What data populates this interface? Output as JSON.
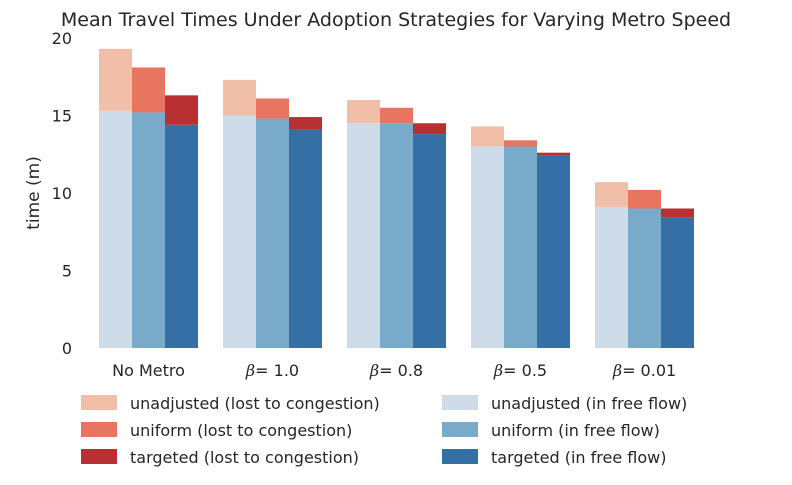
{
  "chart_data": {
    "type": "bar",
    "stacked": true,
    "title": "Mean Travel Times Under Adoption Strategies for Varying Metro Speed",
    "xlabel": "",
    "ylabel": "time (m)",
    "ylim": [
      0,
      20
    ],
    "yticks": [
      0,
      5,
      10,
      15,
      20
    ],
    "grid": false,
    "legend_position": "bottom",
    "categories": [
      {
        "prefix": "",
        "label": "No Metro"
      },
      {
        "prefix": "β",
        "label": "= 1.0"
      },
      {
        "prefix": "β",
        "label": "= 0.8"
      },
      {
        "prefix": "β",
        "label": "= 0.5"
      },
      {
        "prefix": "β",
        "label": "= 0.01"
      }
    ],
    "strategies": [
      "unadjusted",
      "uniform",
      "targeted"
    ],
    "free_flow": {
      "unadjusted": [
        15.3,
        15.0,
        14.5,
        13.0,
        9.1
      ],
      "uniform": [
        15.2,
        14.8,
        14.5,
        13.0,
        9.0
      ],
      "targeted": [
        14.4,
        14.1,
        13.8,
        12.4,
        8.4
      ]
    },
    "total": {
      "unadjusted": [
        19.3,
        17.3,
        16.0,
        14.3,
        10.7
      ],
      "uniform": [
        18.1,
        16.1,
        15.5,
        13.4,
        10.2
      ],
      "targeted": [
        16.3,
        14.9,
        14.5,
        12.6,
        9.0
      ]
    },
    "colors": {
      "unadjusted_free": "#cedcea",
      "uniform_free": "#7aaaca",
      "targeted_free": "#3470a5",
      "unadjusted_congestion": "#f1bfa8",
      "uniform_congestion": "#e77560",
      "targeted_congestion": "#b83032"
    },
    "legend": [
      {
        "label": "unadjusted (lost to congestion)",
        "color": "#f1bfa8"
      },
      {
        "label": "uniform (lost to congestion)",
        "color": "#e77560"
      },
      {
        "label": "targeted (lost to congestion)",
        "color": "#b83032"
      },
      {
        "label": "unadjusted (in free flow)",
        "color": "#cedcea"
      },
      {
        "label": "uniform (in free flow)",
        "color": "#7aaaca"
      },
      {
        "label": "targeted (in free flow)",
        "color": "#3470a5"
      }
    ]
  }
}
